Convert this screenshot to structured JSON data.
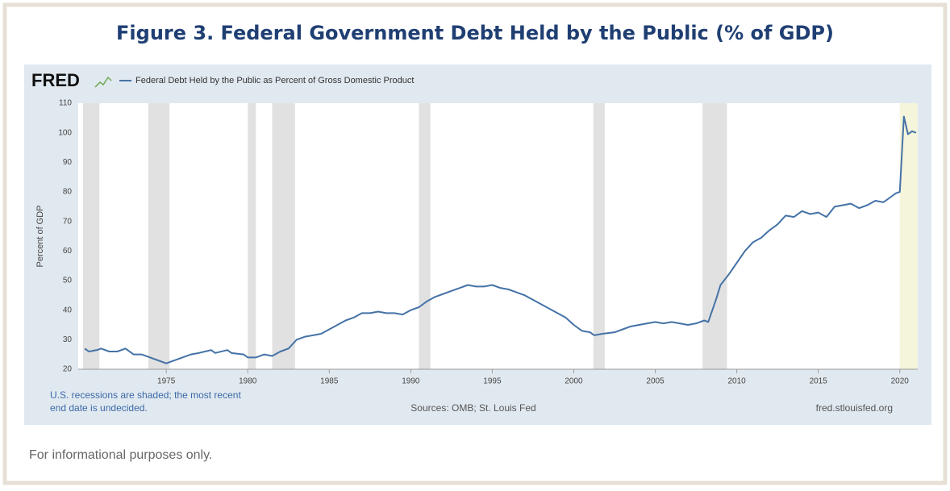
{
  "chart_data": {
    "type": "line",
    "title": "Figure 3.  Federal Government Debt Held by the Public (% of GDP)",
    "brand": "FRED",
    "y_label": "Percent of GDP",
    "note": [
      "U.S. recessions are shaded; the most recent",
      "end date is undecided."
    ],
    "source": "Sources: OMB; St. Louis Fed",
    "url": "fred.stlouisfed.org",
    "footer": "For informational purposes only.",
    "x": [
      1970,
      1970.25,
      1970.75,
      1971,
      1971.5,
      1972,
      1972.5,
      1973,
      1973.5,
      1974,
      1974.5,
      1975,
      1975.25,
      1975.75,
      1976.5,
      1977,
      1977.75,
      1978,
      1978.75,
      1979,
      1979.75,
      1980,
      1980.5,
      1981,
      1981.5,
      1982,
      1982.5,
      1983,
      1983.5,
      1984,
      1984.5,
      1985,
      1985.5,
      1986,
      1986.5,
      1987,
      1987.5,
      1988,
      1988.5,
      1989,
      1989.5,
      1990,
      1990.5,
      1991,
      1991.5,
      1992,
      1992.5,
      1993,
      1993.5,
      1994,
      1994.5,
      1995,
      1995.5,
      1996,
      1996.5,
      1997,
      1997.5,
      1998,
      1998.5,
      1999,
      1999.5,
      2000,
      2000.5,
      2001,
      2001.25,
      2001.75,
      2002.5,
      2003,
      2003.5,
      2004,
      2004.5,
      2005,
      2005.5,
      2006,
      2006.5,
      2007,
      2007.5,
      2008,
      2008.25,
      2008.5,
      2008.75,
      2009,
      2009.5,
      2010,
      2010.5,
      2011,
      2011.5,
      2012,
      2012.5,
      2013,
      2013.5,
      2014,
      2014.5,
      2015,
      2015.5,
      2016,
      2016.5,
      2017,
      2017.5,
      2018,
      2018.5,
      2019,
      2019.5,
      2019.75,
      2020,
      2020.25,
      2020.5,
      2020.75,
      2021
    ],
    "series": [
      {
        "name": "Federal Debt Held by the Public as Percent of Gross Domestic Product",
        "color": "#4572a7",
        "values": [
          27,
          26,
          26.5,
          27,
          26,
          26,
          27,
          25,
          25,
          24,
          23,
          22,
          22.5,
          23.5,
          25,
          25.5,
          26.5,
          25.5,
          26.5,
          25.5,
          25,
          24,
          24,
          25,
          24.5,
          26,
          27,
          30,
          31,
          31.5,
          32,
          33.5,
          35,
          36.5,
          37.5,
          39,
          39,
          39.5,
          39,
          39,
          38.5,
          40,
          41,
          43,
          44.5,
          45.5,
          46.5,
          47.5,
          48.5,
          48,
          48,
          48.5,
          47.5,
          47,
          46,
          45,
          43.5,
          42,
          40.5,
          39,
          37.5,
          35,
          33,
          32.5,
          31.5,
          32,
          32.5,
          33.5,
          34.5,
          35,
          35.5,
          36,
          35.5,
          36,
          35.5,
          35,
          35.5,
          36.5,
          36,
          40,
          44,
          48.5,
          52,
          56,
          60,
          63,
          64.5,
          67,
          69,
          72,
          71.5,
          73.5,
          72.5,
          73,
          71.5,
          75,
          75.5,
          76,
          74.5,
          75.5,
          77,
          76.5,
          78.5,
          79.5,
          80,
          105.5,
          99.5,
          100.5,
          100
        ]
      }
    ],
    "recessions": [
      {
        "start": 1969.9,
        "end": 1970.9,
        "color": "#e1e1e1"
      },
      {
        "start": 1973.9,
        "end": 1975.2,
        "color": "#e1e1e1"
      },
      {
        "start": 1980.0,
        "end": 1980.5,
        "color": "#e1e1e1"
      },
      {
        "start": 1981.5,
        "end": 1982.9,
        "color": "#e1e1e1"
      },
      {
        "start": 1990.5,
        "end": 1991.2,
        "color": "#e1e1e1"
      },
      {
        "start": 2001.2,
        "end": 2001.9,
        "color": "#e1e1e1"
      },
      {
        "start": 2007.9,
        "end": 2009.4,
        "color": "#e1e1e1"
      },
      {
        "start": 2020.0,
        "end": 2021.1,
        "color": "#f5f5dc"
      }
    ],
    "xlim": [
      1969.6,
      2021.1
    ],
    "xticks": [
      1975,
      1980,
      1985,
      1990,
      1995,
      2000,
      2005,
      2010,
      2015,
      2020
    ],
    "ylim": [
      20,
      110
    ],
    "yticks": [
      20,
      30,
      40,
      50,
      60,
      70,
      80,
      90,
      100,
      110
    ],
    "grid": false
  }
}
